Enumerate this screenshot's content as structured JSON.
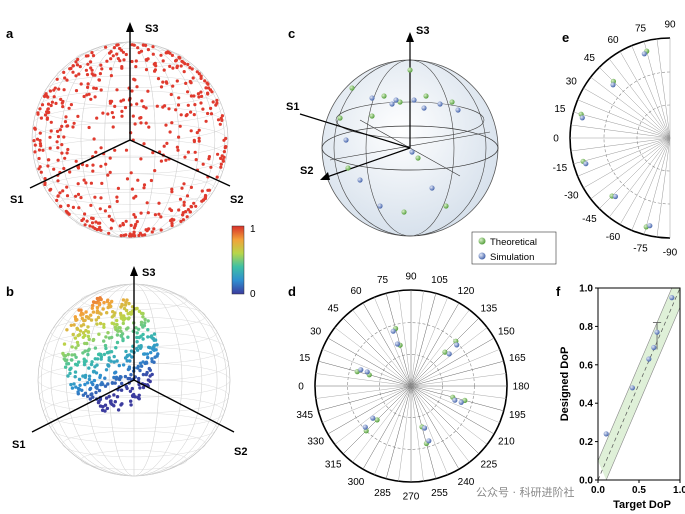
{
  "panels": {
    "a": {
      "letter": "a",
      "axes": {
        "s1": "S1",
        "s2": "S2",
        "s3": "S3"
      }
    },
    "b": {
      "letter": "b",
      "axes": {
        "s1": "S1",
        "s2": "S2",
        "s3": "S3"
      }
    },
    "c": {
      "letter": "c",
      "axes": {
        "s1": "S1",
        "s2": "S2",
        "s3": "S3"
      },
      "legend": {
        "theoretical": "Theoretical",
        "simulation": "Simulation"
      }
    },
    "d": {
      "letter": "d"
    },
    "e": {
      "letter": "e"
    },
    "f": {
      "letter": "f"
    }
  },
  "colorbar": {
    "max_label": "1",
    "min_label": "0"
  },
  "colors": {
    "red": "#e03a2e",
    "theory": "#6ab04c",
    "sim": "#5b7ec7"
  },
  "chart_data": [
    {
      "type": "scatter",
      "panel": "d",
      "title": "",
      "angular_ticks": [
        "0",
        "15",
        "30",
        "45",
        "60",
        "75",
        "90",
        "105",
        "120",
        "135",
        "150",
        "165",
        "180",
        "195",
        "210",
        "225",
        "240",
        "255",
        "270",
        "285",
        "300",
        "315",
        "330",
        "345"
      ],
      "series": [
        {
          "name": "Theoretical",
          "points": [
            {
              "theta": 15,
              "r": 0.45
            },
            {
              "theta": 75,
              "r": 0.62
            },
            {
              "theta": 135,
              "r": 0.5
            },
            {
              "theta": 195,
              "r": 0.58
            },
            {
              "theta": 255,
              "r": 0.44
            },
            {
              "theta": 315,
              "r": 0.66
            }
          ]
        },
        {
          "name": "Simulation",
          "points": [
            {
              "theta": 18,
              "r": 0.48
            },
            {
              "theta": 72,
              "r": 0.6
            },
            {
              "theta": 140,
              "r": 0.52
            },
            {
              "theta": 198,
              "r": 0.55
            },
            {
              "theta": 252,
              "r": 0.46
            },
            {
              "theta": 318,
              "r": 0.64
            }
          ]
        }
      ]
    },
    {
      "type": "scatter",
      "panel": "e",
      "angular_ticks": [
        "90",
        "75",
        "60",
        "45",
        "30",
        "15",
        "0",
        "-15",
        "-30",
        "-45",
        "-60",
        "-75",
        "-90"
      ],
      "series": [
        {
          "name": "Theoretical",
          "points": [
            {
              "theta": 75,
              "r": 0.9
            },
            {
              "theta": 45,
              "r": 0.8
            },
            {
              "theta": 15,
              "r": 0.92
            },
            {
              "theta": -15,
              "r": 0.9
            },
            {
              "theta": -45,
              "r": 0.82
            },
            {
              "theta": -75,
              "r": 0.92
            }
          ]
        },
        {
          "name": "Simulation",
          "points": [
            {
              "theta": 73,
              "r": 0.88
            },
            {
              "theta": 43,
              "r": 0.78
            },
            {
              "theta": 13,
              "r": 0.9
            },
            {
              "theta": -17,
              "r": 0.88
            },
            {
              "theta": -47,
              "r": 0.8
            },
            {
              "theta": -77,
              "r": 0.9
            }
          ]
        }
      ]
    },
    {
      "type": "scatter",
      "panel": "f",
      "xlabel": "Target DoP",
      "ylabel": "Designed DoP",
      "xlim": [
        0,
        1
      ],
      "ylim": [
        0,
        1
      ],
      "xticks": [
        "0.0",
        "0.5",
        "1.0"
      ],
      "yticks": [
        "0.0",
        "0.2",
        "0.4",
        "0.6",
        "0.8",
        "1.0"
      ],
      "series": [
        {
          "name": "Designed",
          "x": [
            0.1,
            0.42,
            0.62,
            0.68,
            0.72,
            0.9
          ],
          "y": [
            0.24,
            0.48,
            0.63,
            0.69,
            0.77,
            0.95
          ]
        }
      ]
    }
  ],
  "watermark": "公众号 · 科研进阶社"
}
